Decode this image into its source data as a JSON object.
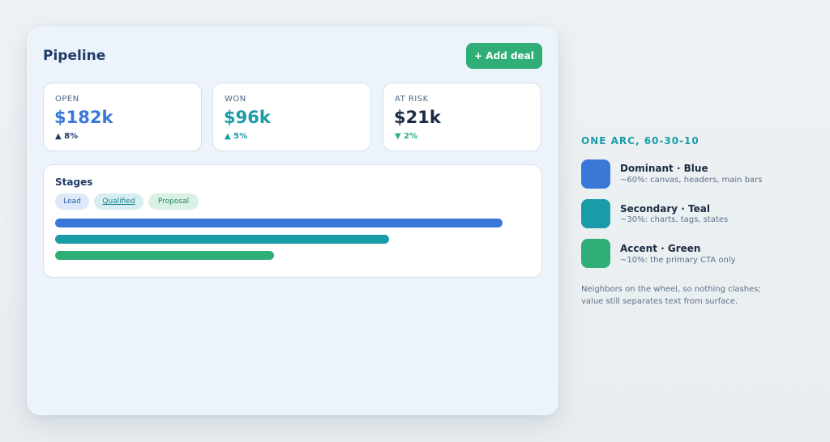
{
  "pipeline": {
    "title": "Pipeline",
    "add_button": "+ Add deal",
    "kpis": [
      {
        "label": "OPEN",
        "value": "$182k",
        "delta": "▲ 8%",
        "value_color": "#3a78d8",
        "delta_color": "#1f3b66"
      },
      {
        "label": "WON",
        "value": "$96k",
        "delta": "▲ 5%",
        "value_color": "#1a9ba8",
        "delta_color": "#1a9ba8"
      },
      {
        "label": "AT RISK",
        "value": "$21k",
        "delta": "▼ 2%",
        "value_color": "#1c2a44",
        "delta_color": "#2fae77"
      }
    ],
    "stages": {
      "title": "Stages",
      "chips": [
        "Lead",
        "Qualified",
        "Proposal"
      ],
      "bars": [
        {
          "fraction": 1.0,
          "color": "#3a78d8"
        },
        {
          "fraction": 0.746,
          "color": "#1a9ba8"
        },
        {
          "fraction": 0.489,
          "color": "#2fae77"
        }
      ]
    }
  },
  "palette": {
    "heading": "ONE ARC, 60-30-10",
    "items": [
      {
        "title": "Dominant · Blue",
        "desc": "~60%: canvas, headers, main bars",
        "color": "#3a78d8"
      },
      {
        "title": "Secondary · Teal",
        "desc": "~30%: charts, tags, states",
        "color": "#1a9ba8"
      },
      {
        "title": "Accent · Green",
        "desc": "~10%: the primary CTA only",
        "color": "#2fae77"
      }
    ],
    "note": "Neighbors on the wheel, so nothing clashes; value still separates text from surface."
  }
}
